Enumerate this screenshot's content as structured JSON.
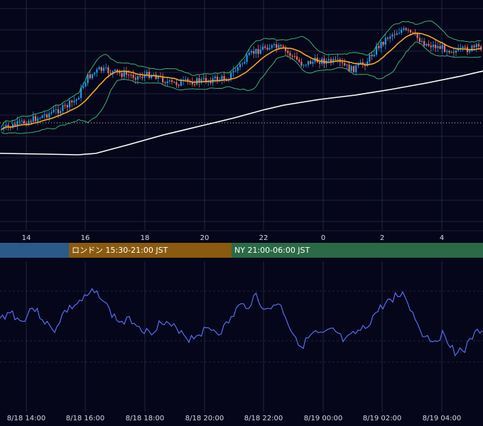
{
  "chart_data": [
    {
      "type": "candlestick",
      "title": "",
      "x_ticks": [
        "14",
        "16",
        "18",
        "20",
        "22",
        "0",
        "2",
        "4"
      ],
      "indicators": [
        "moving-average-orange",
        "moving-average-white",
        "bollinger-bands-green",
        "dotted-reference-line"
      ],
      "colors": {
        "up": "#1e9be8",
        "down": "#e8706a",
        "ma_short": "#f5a623",
        "ma_long": "#ffffff",
        "bands": "#3cb371",
        "grid": "#3a3f5a",
        "ref_line": "#c8c8c8"
      },
      "note_series": "Price trend: rises from ~14:00 into 16:00, plateau, up again near 22:00, peak near 2:00"
    },
    {
      "type": "line",
      "title": "",
      "x_labels": [
        "8/18 14:00",
        "8/18 16:00",
        "8/18 18:00",
        "8/18 20:00",
        "8/18 22:00",
        "8/19 00:00",
        "8/19 02:00",
        "8/19 04:00"
      ],
      "series_color": "#5b6cf0"
    }
  ],
  "sessions": [
    {
      "label": "",
      "color": "#2a5a8a"
    },
    {
      "label": "ロンドン 15:30-21:00 JST",
      "color": "#8a5a10"
    },
    {
      "label": "NY 21:00-06:00 JST",
      "color": "#2a6a46"
    }
  ],
  "colors": {
    "background": "#05061a"
  }
}
